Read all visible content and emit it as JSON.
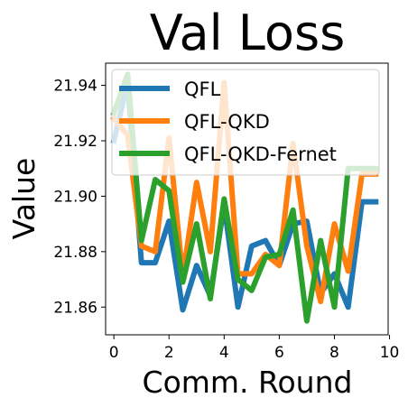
{
  "chart_data": {
    "type": "line",
    "title": "Val Loss",
    "xlabel": "Comm. Round",
    "ylabel": "Value",
    "xlim": [
      -0.3,
      9.95
    ],
    "ylim": [
      21.85,
      21.948
    ],
    "xticks": [
      0,
      2,
      4,
      6,
      8,
      10
    ],
    "xtick_labels": [
      "0",
      "2",
      "4",
      "6",
      "8",
      "10"
    ],
    "yticks": [
      21.86,
      21.88,
      21.9,
      21.92,
      21.94
    ],
    "ytick_labels": [
      "21.86",
      "21.88",
      "21.90",
      "21.92",
      "21.94"
    ],
    "grid": false,
    "legend_position": "upper-left",
    "x": [
      0,
      0.5,
      1,
      1.5,
      2,
      2.5,
      3,
      3.5,
      4,
      4.5,
      5,
      5.5,
      6,
      6.5,
      7,
      7.5,
      8,
      8.5,
      9,
      9.5
    ],
    "series": [
      {
        "name": "QFL",
        "color": "#1f77b4",
        "values": [
          21.92,
          21.941,
          21.876,
          21.876,
          21.891,
          21.859,
          21.875,
          21.864,
          21.897,
          21.86,
          21.882,
          21.884,
          21.875,
          21.89,
          21.891,
          21.865,
          21.872,
          21.86,
          21.898,
          21.898
        ]
      },
      {
        "name": "QFL-QKD",
        "color": "#ff7f0e",
        "values": [
          21.928,
          21.922,
          21.882,
          21.88,
          21.921,
          21.871,
          21.905,
          21.88,
          21.941,
          21.872,
          21.872,
          21.879,
          21.875,
          21.919,
          21.882,
          21.862,
          21.89,
          21.873,
          21.908,
          21.908
        ]
      },
      {
        "name": "QFL-QKD-Fernet",
        "color": "#2ca02c",
        "values": [
          21.93,
          21.944,
          21.884,
          21.906,
          21.902,
          21.869,
          21.89,
          21.863,
          21.899,
          21.87,
          21.866,
          21.878,
          21.879,
          21.895,
          21.855,
          21.884,
          21.86,
          21.91,
          21.91,
          21.91
        ]
      }
    ]
  }
}
